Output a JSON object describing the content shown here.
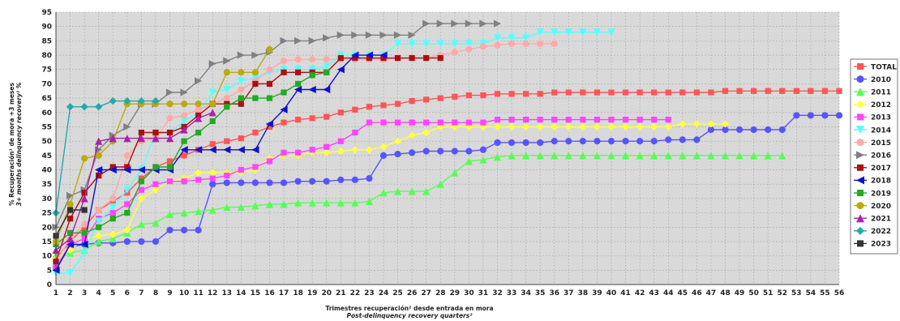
{
  "chart_data": {
    "type": "line",
    "xlabel": "Trimestres recuperación² desde entrada en mora",
    "xlabel_en": "Post-delinquency recovery quarters²",
    "ylabel": "% Recuperación¹ de mora +3 meses",
    "ylabel_en": "3+ months delinquency recovery¹ %",
    "xlim": [
      1,
      56
    ],
    "ylim": [
      0,
      95
    ],
    "y_ticks": [
      0,
      5,
      10,
      15,
      20,
      25,
      30,
      35,
      40,
      45,
      50,
      55,
      60,
      65,
      70,
      75,
      80,
      85,
      90,
      95
    ],
    "x_ticks": [
      1,
      2,
      3,
      4,
      5,
      6,
      7,
      8,
      9,
      10,
      11,
      12,
      13,
      14,
      15,
      16,
      17,
      18,
      19,
      20,
      21,
      22,
      23,
      24,
      25,
      26,
      27,
      28,
      29,
      30,
      31,
      32,
      33,
      34,
      35,
      36,
      37,
      38,
      39,
      40,
      41,
      42,
      43,
      44,
      45,
      46,
      47,
      48,
      49,
      50,
      51,
      52,
      53,
      54,
      55,
      56
    ],
    "grid": true,
    "legend_position": "right",
    "series": [
      {
        "name": "TOTAL",
        "color": "#ff5555",
        "marker": "square",
        "values": [
          9,
          15,
          20,
          26,
          29,
          32,
          37,
          41,
          43,
          45,
          47,
          49,
          50,
          51,
          53,
          55,
          56.5,
          57.5,
          58,
          58.5,
          60,
          61,
          62,
          62.5,
          63,
          64,
          64.5,
          65,
          65.5,
          66,
          66,
          66.5,
          66.5,
          66.5,
          66.5,
          67,
          67,
          67,
          67,
          67,
          67,
          67,
          67,
          67,
          67,
          67,
          67,
          67.5,
          67.5,
          67.5,
          67.5,
          67.5,
          67.5,
          67.5,
          67.5,
          67.5
        ]
      },
      {
        "name": "2010",
        "color": "#5555ff",
        "marker": "circle",
        "values": [
          6,
          13,
          14,
          14.5,
          14.5,
          15,
          15,
          15,
          19,
          19,
          19,
          35,
          35.5,
          35.5,
          35.5,
          35.5,
          35.5,
          36,
          36,
          36,
          36.5,
          36.5,
          37,
          45,
          45.5,
          46,
          46.5,
          46.5,
          46.5,
          46.5,
          47,
          49.5,
          49.5,
          49.5,
          49.5,
          50,
          50,
          50,
          50,
          50,
          50,
          50,
          50,
          50.5,
          50.5,
          50.5,
          54,
          54,
          54,
          54,
          54,
          54,
          59,
          59,
          59,
          59
        ]
      },
      {
        "name": "2011",
        "color": "#55ff55",
        "marker": "triangle-up",
        "values": [
          10,
          11,
          12,
          15,
          16,
          18,
          21,
          21.5,
          24.5,
          25,
          25.5,
          26,
          27,
          27,
          27.5,
          28,
          28,
          28.5,
          28.5,
          28.5,
          28.5,
          28.5,
          29,
          32,
          32.5,
          32.5,
          32.5,
          35,
          39,
          43,
          43.5,
          44.5,
          45,
          45,
          45,
          45,
          45,
          45,
          45,
          45,
          45,
          45,
          45,
          45,
          45,
          45,
          45,
          45,
          45,
          45,
          45,
          45
        ]
      },
      {
        "name": "2012",
        "color": "#ffff44",
        "marker": "diamond",
        "values": [
          9,
          12,
          16,
          17,
          17.5,
          19,
          30,
          33,
          36,
          37,
          39,
          39,
          39,
          39,
          40,
          44,
          45,
          45,
          46,
          46,
          46.5,
          47,
          47,
          48,
          50,
          52,
          53,
          55,
          55,
          55,
          55,
          55,
          55,
          55,
          55,
          55,
          55,
          55,
          55,
          55,
          55,
          55,
          55,
          55,
          56,
          56,
          56,
          56
        ]
      },
      {
        "name": "2013",
        "color": "#ff44ff",
        "marker": "square",
        "values": [
          6,
          14,
          16,
          23,
          25,
          28,
          33,
          35,
          36,
          36,
          36.5,
          37,
          38,
          40,
          41,
          43,
          46,
          46,
          47,
          48,
          50,
          53,
          56.5,
          56.5,
          56.5,
          56.5,
          56.5,
          56.5,
          56.5,
          56.5,
          56.5,
          57.5,
          57.5,
          57.5,
          57.5,
          57.5,
          57.5,
          57.5,
          57.5,
          57.5,
          57.5,
          57.5,
          57.5,
          57.5
        ]
      },
      {
        "name": "2014",
        "color": "#55ffff",
        "marker": "triangle-down",
        "values": [
          4,
          4,
          11,
          22,
          27,
          33,
          40,
          53,
          53,
          57,
          60,
          67,
          68,
          71,
          72,
          74,
          75,
          75,
          75,
          76,
          80,
          80,
          80,
          80,
          84,
          84,
          84,
          84,
          84,
          84,
          84,
          86,
          86,
          86,
          88,
          88,
          88,
          88,
          88,
          88
        ]
      },
      {
        "name": "2015",
        "color": "#ffaaaa",
        "marker": "circle",
        "values": [
          8,
          16,
          21,
          26,
          30,
          45,
          50,
          51,
          58,
          59,
          61,
          63,
          65,
          68,
          71,
          75,
          78,
          78.5,
          78.5,
          78.5,
          78.5,
          78.5,
          78.5,
          78.5,
          79,
          79,
          79,
          80,
          81,
          82,
          83,
          83.5,
          84,
          84,
          84,
          84
        ]
      },
      {
        "name": "2016",
        "color": "#808080",
        "marker": "triangle-right",
        "values": [
          20,
          31,
          33,
          47,
          52,
          55,
          63,
          63,
          67,
          67,
          71,
          77,
          78,
          80,
          80,
          81,
          85,
          85,
          85,
          86,
          87,
          87,
          87,
          87,
          87,
          87,
          91,
          91,
          91,
          91,
          91,
          91
        ]
      },
      {
        "name": "2017",
        "color": "#aa1111",
        "marker": "square",
        "values": [
          8,
          23,
          32,
          38,
          41,
          41,
          53,
          53,
          53,
          55,
          59,
          63,
          63,
          63,
          70,
          70,
          74,
          74,
          74,
          74,
          79,
          79,
          79,
          79,
          79,
          79,
          79,
          79
        ]
      },
      {
        "name": "2018",
        "color": "#1111cc",
        "marker": "triangle-left",
        "values": [
          5,
          14,
          14,
          40,
          40,
          40,
          40,
          40,
          40,
          47,
          47,
          47,
          47,
          47,
          47,
          56,
          61,
          68,
          68,
          68,
          75,
          80,
          80,
          80
        ]
      },
      {
        "name": "2019",
        "color": "#22aa22",
        "marker": "square",
        "values": [
          14,
          18,
          18,
          20,
          23,
          25,
          36,
          41,
          41,
          50,
          53,
          57,
          62,
          65,
          65,
          65,
          67,
          70,
          73,
          74
        ]
      },
      {
        "name": "2020",
        "color": "#bbaa11",
        "marker": "circle",
        "values": [
          15,
          28,
          44,
          45,
          50,
          63,
          63,
          63,
          63,
          63,
          63,
          63,
          74,
          74,
          74,
          82
        ]
      },
      {
        "name": "2021",
        "color": "#aa22aa",
        "marker": "triangle-up",
        "values": [
          12,
          16,
          30,
          50,
          51,
          51,
          51,
          51,
          51,
          54,
          58,
          60
        ]
      },
      {
        "name": "2022",
        "color": "#22aaaa",
        "marker": "diamond",
        "values": [
          25,
          62,
          62,
          62,
          64,
          64,
          64,
          64
        ]
      },
      {
        "name": "2023",
        "color": "#333333",
        "marker": "square",
        "values": [
          17,
          26,
          26
        ]
      }
    ]
  }
}
